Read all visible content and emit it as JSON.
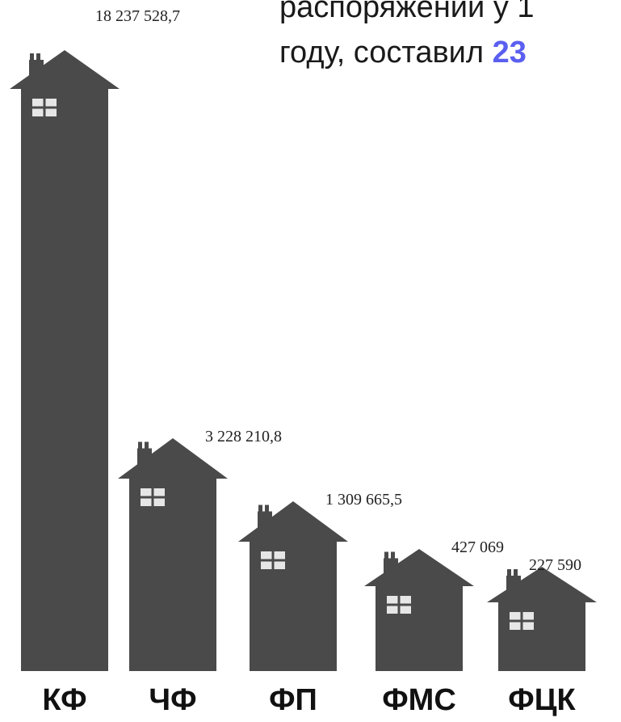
{
  "heading": {
    "line1": "распоряжении у 1",
    "line2_prefix": "году, составил ",
    "line2_accent": "23"
  },
  "chart_data": {
    "type": "bar",
    "categories": [
      "КФ",
      "ЧФ",
      "ФП",
      "ФМС",
      "ФЦК"
    ],
    "values": [
      18237528.7,
      3228210.8,
      1309665.5,
      427069,
      227590
    ],
    "value_labels": [
      "18 237 528,7",
      "3 228 210,8",
      "1 309 665,5",
      "427 069",
      "227 590"
    ],
    "mark_style": "house",
    "colors": {
      "house": "#4a4a4a",
      "window": "#e6e6e6"
    }
  }
}
